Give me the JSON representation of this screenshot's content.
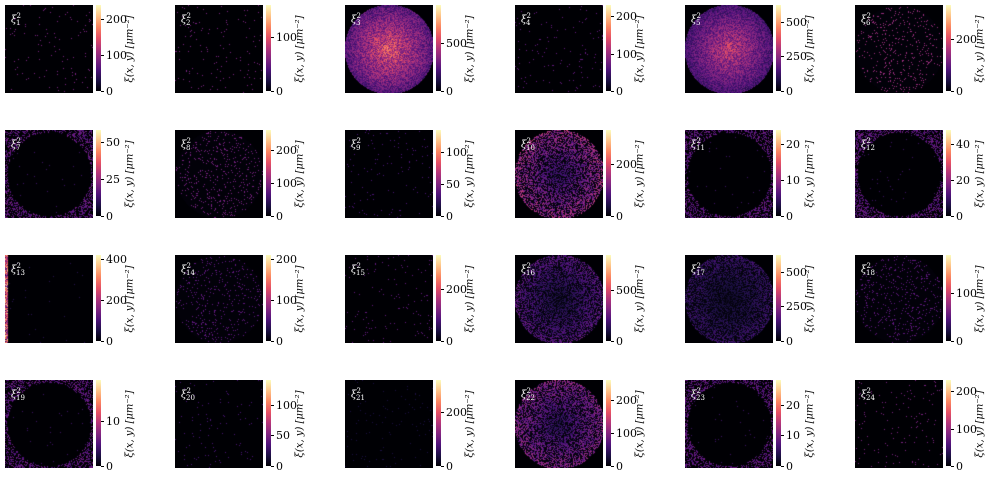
{
  "figure": {
    "colormap_stops": [
      "#000004",
      "#1c1044",
      "#4f127b",
      "#812581",
      "#b5367a",
      "#e55064",
      "#fb8761",
      "#fec287",
      "#fcfdbf"
    ],
    "colorbar_label": "ξ(x, y) [μm⁻²]"
  },
  "chart_data": [
    {
      "type": "heatmap",
      "panel_label": "ξ₁²",
      "ticks": [
        0,
        100,
        200
      ],
      "vmax": 240,
      "intensity": 0.06,
      "pattern": "sparse"
    },
    {
      "type": "heatmap",
      "panel_label": "ξ₂²",
      "ticks": [
        0,
        100
      ],
      "vmax": 160,
      "intensity": 0.06,
      "pattern": "sparse"
    },
    {
      "type": "heatmap",
      "panel_label": "ξ₃²",
      "ticks": [
        0,
        500
      ],
      "vmax": 900,
      "intensity": 0.65,
      "pattern": "disc-bright"
    },
    {
      "type": "heatmap",
      "panel_label": "ξ₄²",
      "ticks": [
        0,
        100,
        200
      ],
      "vmax": 230,
      "intensity": 0.05,
      "pattern": "sparse"
    },
    {
      "type": "heatmap",
      "panel_label": "ξ₅²",
      "ticks": [
        0,
        250,
        500
      ],
      "vmax": 620,
      "intensity": 0.55,
      "pattern": "disc-bright"
    },
    {
      "type": "heatmap",
      "panel_label": "ξ₆²",
      "ticks": [
        0,
        200
      ],
      "vmax": 330,
      "intensity": 0.15,
      "pattern": "disc-speckle"
    },
    {
      "type": "heatmap",
      "panel_label": "ξ₇²",
      "ticks": [
        0,
        25,
        50
      ],
      "vmax": 58,
      "intensity": 0.02,
      "pattern": "edge"
    },
    {
      "type": "heatmap",
      "panel_label": "ξ₈²",
      "ticks": [
        0,
        100,
        200
      ],
      "vmax": 260,
      "intensity": 0.12,
      "pattern": "disc-speckle"
    },
    {
      "type": "heatmap",
      "panel_label": "ξ₉²",
      "ticks": [
        0,
        50,
        100
      ],
      "vmax": 135,
      "intensity": 0.04,
      "pattern": "sparse"
    },
    {
      "type": "heatmap",
      "panel_label": "ξ₁₀²",
      "ticks": [
        0,
        200
      ],
      "vmax": 330,
      "intensity": 0.4,
      "pattern": "disc-ring"
    },
    {
      "type": "heatmap",
      "panel_label": "ξ₁₁²",
      "ticks": [
        0,
        10,
        20
      ],
      "vmax": 24,
      "intensity": 0.02,
      "pattern": "edge"
    },
    {
      "type": "heatmap",
      "panel_label": "ξ₁₂²",
      "ticks": [
        0,
        20,
        40
      ],
      "vmax": 48,
      "intensity": 0.02,
      "pattern": "edge"
    },
    {
      "type": "heatmap",
      "panel_label": "ξ₁₃²",
      "ticks": [
        0,
        200,
        400
      ],
      "vmax": 420,
      "intensity": 0.03,
      "pattern": "left-edge"
    },
    {
      "type": "heatmap",
      "panel_label": "ξ₁₄²",
      "ticks": [
        0,
        100,
        200
      ],
      "vmax": 210,
      "intensity": 0.1,
      "pattern": "disc-speckle"
    },
    {
      "type": "heatmap",
      "panel_label": "ξ₁₅²",
      "ticks": [
        0,
        200
      ],
      "vmax": 330,
      "intensity": 0.05,
      "pattern": "sparse"
    },
    {
      "type": "heatmap",
      "panel_label": "ξ₁₆²",
      "ticks": [
        0,
        500
      ],
      "vmax": 850,
      "intensity": 0.25,
      "pattern": "disc-ring"
    },
    {
      "type": "heatmap",
      "panel_label": "ξ₁₇²",
      "ticks": [
        0,
        250,
        500
      ],
      "vmax": 620,
      "intensity": 0.18,
      "pattern": "disc-ring"
    },
    {
      "type": "heatmap",
      "panel_label": "ξ₁₈²",
      "ticks": [
        0,
        100
      ],
      "vmax": 180,
      "intensity": 0.1,
      "pattern": "disc-speckle"
    },
    {
      "type": "heatmap",
      "panel_label": "ξ₁₉²",
      "ticks": [
        0,
        10
      ],
      "vmax": 19,
      "intensity": 0.02,
      "pattern": "edge"
    },
    {
      "type": "heatmap",
      "panel_label": "ξ₂₀²",
      "ticks": [
        0,
        50,
        100
      ],
      "vmax": 140,
      "intensity": 0.04,
      "pattern": "sparse"
    },
    {
      "type": "heatmap",
      "panel_label": "ξ₂₁²",
      "ticks": [
        0,
        200
      ],
      "vmax": 320,
      "intensity": 0.02,
      "pattern": "sparse"
    },
    {
      "type": "heatmap",
      "panel_label": "ξ₂₂²",
      "ticks": [
        0,
        100,
        200
      ],
      "vmax": 260,
      "intensity": 0.35,
      "pattern": "disc-ring"
    },
    {
      "type": "heatmap",
      "panel_label": "ξ₂₃²",
      "ticks": [
        0,
        10,
        20
      ],
      "vmax": 28,
      "intensity": 0.02,
      "pattern": "edge"
    },
    {
      "type": "heatmap",
      "panel_label": "ξ₂₄²",
      "ticks": [
        0,
        100,
        200
      ],
      "vmax": 230,
      "intensity": 0.06,
      "pattern": "sparse"
    }
  ]
}
